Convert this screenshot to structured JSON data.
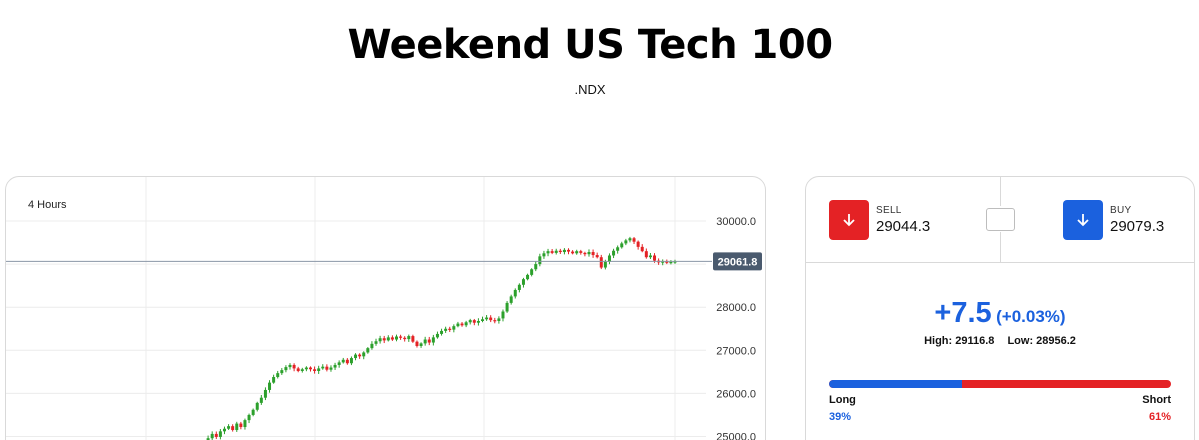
{
  "header": {
    "title": "Weekend US Tech 100",
    "symbol": ".NDX"
  },
  "chart": {
    "timeframe": "4 Hours",
    "current_price_label": "29061.8",
    "colors": {
      "up": "#2ca02c",
      "down": "#e42225",
      "price_tag": "#4a5a6e"
    }
  },
  "chart_data": {
    "type": "candlestick",
    "title": "",
    "xlabel": "",
    "ylabel": "",
    "ylim": [
      24900,
      30400
    ],
    "yticks": [
      "30000.0",
      "29000.0",
      "28000.0",
      "27000.0",
      "26000.0",
      "25000.0"
    ],
    "current_price": 29061.8,
    "close_series": [
      24850,
      24960,
      25060,
      24990,
      25120,
      25180,
      25240,
      25150,
      25300,
      25220,
      25380,
      25500,
      25620,
      25780,
      25900,
      26080,
      26250,
      26380,
      26470,
      26540,
      26610,
      26660,
      26580,
      26520,
      26560,
      26600,
      26560,
      26520,
      26580,
      26620,
      26550,
      26600,
      26660,
      26720,
      26780,
      26700,
      26820,
      26900,
      26860,
      26950,
      27050,
      27150,
      27210,
      27280,
      27230,
      27300,
      27250,
      27320,
      27290,
      27260,
      27330,
      27200,
      27100,
      27160,
      27250,
      27180,
      27300,
      27380,
      27450,
      27500,
      27480,
      27560,
      27620,
      27580,
      27650,
      27700,
      27640,
      27680,
      27720,
      27760,
      27700,
      27680,
      27740,
      27900,
      28100,
      28250,
      28400,
      28520,
      28650,
      28750,
      28880,
      29000,
      29180,
      29250,
      29300,
      29260,
      29310,
      29280,
      29330,
      29290,
      29250,
      29300,
      29260,
      29230,
      29280,
      29210,
      29160,
      28920,
      29050,
      29200,
      29310,
      29390,
      29480,
      29550,
      29600,
      29520,
      29400,
      29300,
      29160,
      29200,
      29080,
      29040,
      29060,
      29030,
      29050,
      29061.8
    ]
  },
  "trade": {
    "sell": {
      "label": "SELL",
      "price": "29044.3",
      "icon": "arrow-down-icon"
    },
    "buy": {
      "label": "BUY",
      "price": "29079.3",
      "icon": "arrow-down-icon"
    },
    "change": "+7.5",
    "change_pct": "(+0.03%)",
    "high": "High: 29116.8",
    "low": "Low: 28956.2",
    "sentiment": {
      "long_label": "Long",
      "short_label": "Short",
      "long_pct": "39%",
      "short_pct": "61%",
      "long_value": 39,
      "short_value": 61
    },
    "colors": {
      "sell": "#e42225",
      "buy": "#1b61de"
    }
  }
}
